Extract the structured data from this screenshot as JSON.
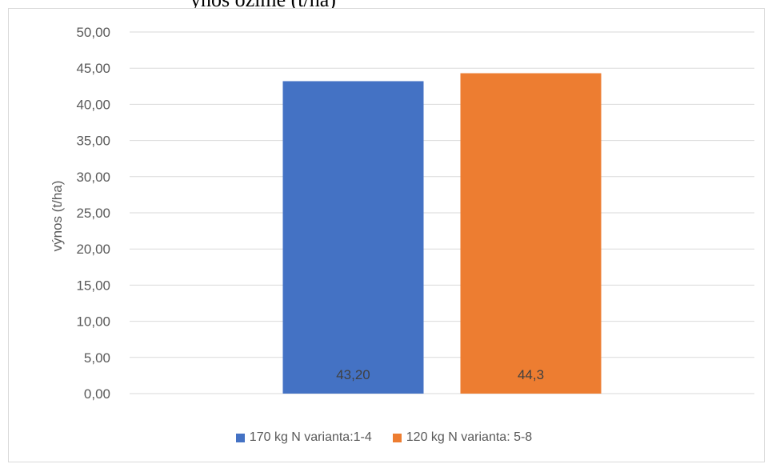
{
  "caption_fragment": "ýnos ozimé (t/ha)",
  "colors": {
    "series1": "#4472c4",
    "series2": "#ed7d31",
    "grid": "#d9d9d9",
    "text": "#595959"
  },
  "chart_data": {
    "type": "bar",
    "categories": [
      ""
    ],
    "series": [
      {
        "name": "170 kg N varianta:1-4",
        "values": [
          43.2
        ],
        "data_label": "43,20"
      },
      {
        "name": "120 kg N varianta: 5-8",
        "values": [
          44.3
        ],
        "data_label": "44,3"
      }
    ],
    "title": "",
    "xlabel": "",
    "ylabel": "výnos (t/ha)",
    "ylim": [
      0,
      50
    ],
    "yticks": [
      0,
      5,
      10,
      15,
      20,
      25,
      30,
      35,
      40,
      45,
      50
    ],
    "ytick_labels": [
      "0,00",
      "5,00",
      "10,00",
      "15,00",
      "20,00",
      "25,00",
      "30,00",
      "35,00",
      "40,00",
      "45,00",
      "50,00"
    ],
    "grid": true,
    "legend_position": "bottom",
    "data_label_position": "inside-base"
  }
}
